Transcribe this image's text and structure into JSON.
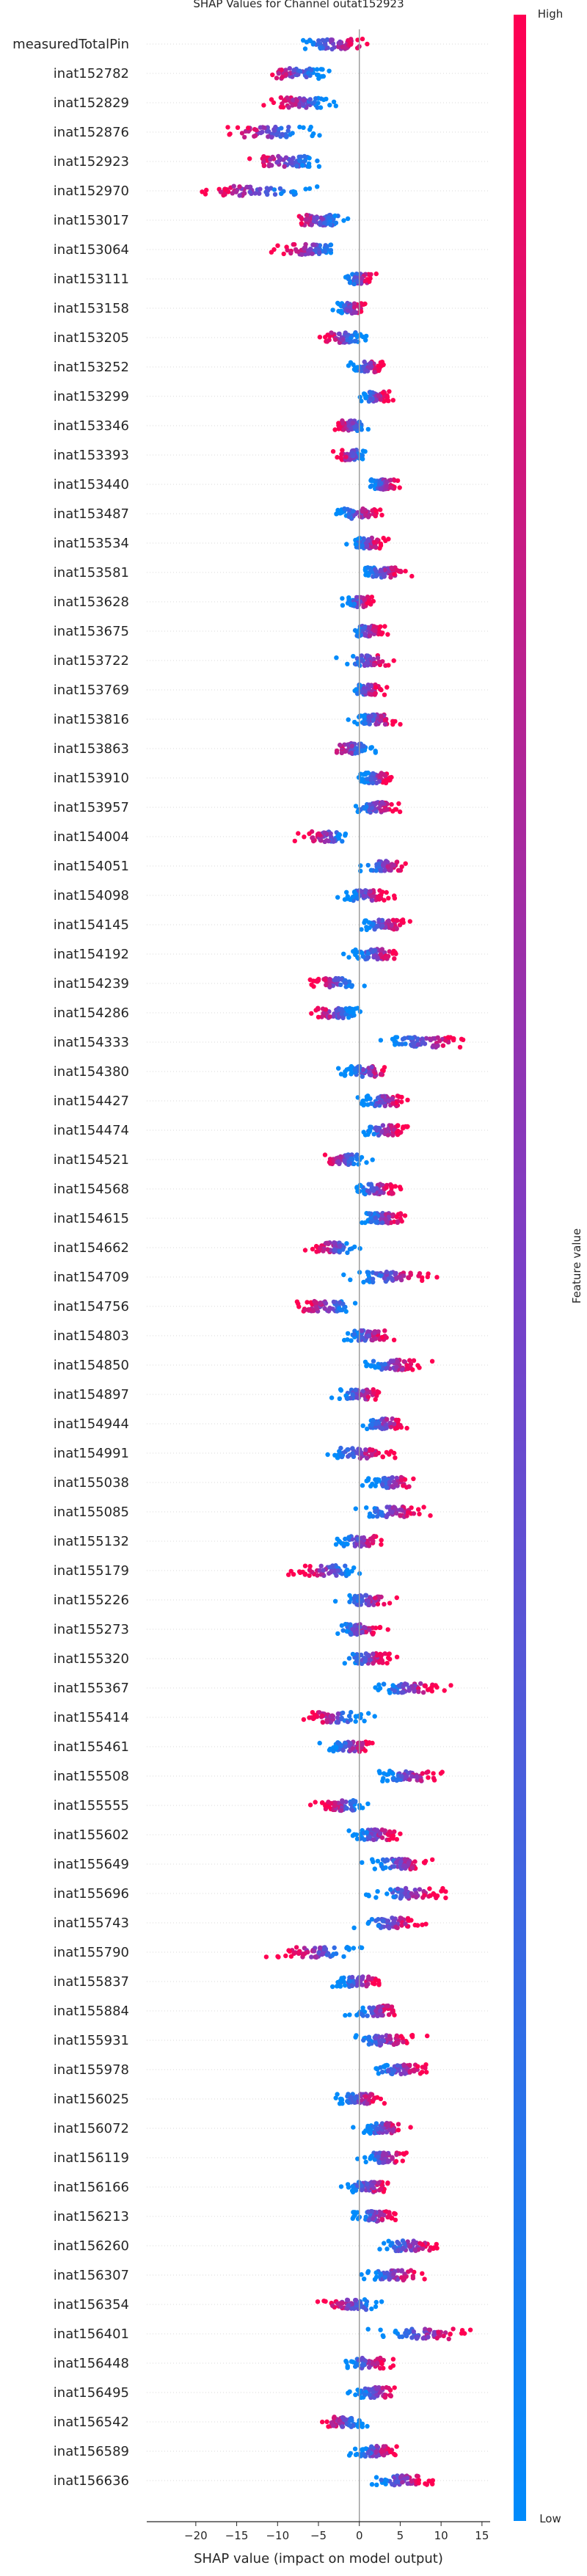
{
  "chart_data": {
    "type": "scatter",
    "subtype": "shap-beeswarm",
    "title": "SHAP Values for Channel outat152923",
    "xlabel": "SHAP value (impact on model output)",
    "xlim": [
      -26,
      16
    ],
    "xticks": [
      -20,
      -15,
      -10,
      -5,
      0,
      5,
      10,
      15
    ],
    "grid": false,
    "colorbar": {
      "label": "Feature value",
      "high": "High",
      "low": "Low",
      "high_color": "#ff0052",
      "low_color": "#008bfb",
      "mid_color": "#7a3ec6"
    },
    "features": [
      {
        "name": "measuredTotalPin",
        "center": -3,
        "spread": 5,
        "dir": 1
      },
      {
        "name": "inat152782",
        "center": -8,
        "spread": 4,
        "dir": -1
      },
      {
        "name": "inat152829",
        "center": -7,
        "spread": 4,
        "dir": -1
      },
      {
        "name": "inat152876",
        "center": -11,
        "spread": 6,
        "dir": -1
      },
      {
        "name": "inat152923",
        "center": -9,
        "spread": 5,
        "dir": -1
      },
      {
        "name": "inat152970",
        "center": -13,
        "spread": 7,
        "dir": -1
      },
      {
        "name": "inat153017",
        "center": -5,
        "spread": 4,
        "dir": -1
      },
      {
        "name": "inat153064",
        "center": -6,
        "spread": 4,
        "dir": -1
      },
      {
        "name": "inat153111",
        "center": 0,
        "spread": 2,
        "dir": 1
      },
      {
        "name": "inat153158",
        "center": -1,
        "spread": 2,
        "dir": 1
      },
      {
        "name": "inat153205",
        "center": -2,
        "spread": 3,
        "dir": -1
      },
      {
        "name": "inat153252",
        "center": 1,
        "spread": 2,
        "dir": 1
      },
      {
        "name": "inat153299",
        "center": 2,
        "spread": 2,
        "dir": 1
      },
      {
        "name": "inat153346",
        "center": -1,
        "spread": 2,
        "dir": -1
      },
      {
        "name": "inat153393",
        "center": -1,
        "spread": 2,
        "dir": -1
      },
      {
        "name": "inat153440",
        "center": 3,
        "spread": 2,
        "dir": 1
      },
      {
        "name": "inat153487",
        "center": 0,
        "spread": 3,
        "dir": 1
      },
      {
        "name": "inat153534",
        "center": 1,
        "spread": 2,
        "dir": 1
      },
      {
        "name": "inat153581",
        "center": 3,
        "spread": 3,
        "dir": 1
      },
      {
        "name": "inat153628",
        "center": 0,
        "spread": 2,
        "dir": 1
      },
      {
        "name": "inat153675",
        "center": 1,
        "spread": 2,
        "dir": 1
      },
      {
        "name": "inat153722",
        "center": 1,
        "spread": 3,
        "dir": 1
      },
      {
        "name": "inat153769",
        "center": 1,
        "spread": 2,
        "dir": 1
      },
      {
        "name": "inat153816",
        "center": 2,
        "spread": 3,
        "dir": 1
      },
      {
        "name": "inat153863",
        "center": -1,
        "spread": 3,
        "dir": -1
      },
      {
        "name": "inat153910",
        "center": 2,
        "spread": 2,
        "dir": 1
      },
      {
        "name": "inat153957",
        "center": 2,
        "spread": 3,
        "dir": 1
      },
      {
        "name": "inat154004",
        "center": -4,
        "spread": 3,
        "dir": -1
      },
      {
        "name": "inat154051",
        "center": 3,
        "spread": 3,
        "dir": 1
      },
      {
        "name": "inat154098",
        "center": 1,
        "spread": 3,
        "dir": 1
      },
      {
        "name": "inat154145",
        "center": 3,
        "spread": 3,
        "dir": 1
      },
      {
        "name": "inat154192",
        "center": 2,
        "spread": 3,
        "dir": 1
      },
      {
        "name": "inat154239",
        "center": -3,
        "spread": 3,
        "dir": -1
      },
      {
        "name": "inat154286",
        "center": -3,
        "spread": 3,
        "dir": -1
      },
      {
        "name": "inat154333",
        "center": 8,
        "spread": 5,
        "dir": 1
      },
      {
        "name": "inat154380",
        "center": 1,
        "spread": 3,
        "dir": 1
      },
      {
        "name": "inat154427",
        "center": 3,
        "spread": 3,
        "dir": 1
      },
      {
        "name": "inat154474",
        "center": 3,
        "spread": 3,
        "dir": 1
      },
      {
        "name": "inat154521",
        "center": -2,
        "spread": 3,
        "dir": -1
      },
      {
        "name": "inat154568",
        "center": 2,
        "spread": 3,
        "dir": 1
      },
      {
        "name": "inat154615",
        "center": 3,
        "spread": 3,
        "dir": 1
      },
      {
        "name": "inat154662",
        "center": -3,
        "spread": 3,
        "dir": -1
      },
      {
        "name": "inat154709",
        "center": 4,
        "spread": 5,
        "dir": 1
      },
      {
        "name": "inat154756",
        "center": -4,
        "spread": 4,
        "dir": -1
      },
      {
        "name": "inat154803",
        "center": 1,
        "spread": 3,
        "dir": 1
      },
      {
        "name": "inat154850",
        "center": 4,
        "spread": 4,
        "dir": 1
      },
      {
        "name": "inat154897",
        "center": 0,
        "spread": 3,
        "dir": 1
      },
      {
        "name": "inat154944",
        "center": 3,
        "spread": 3,
        "dir": 1
      },
      {
        "name": "inat154991",
        "center": 0,
        "spread": 4,
        "dir": 1
      },
      {
        "name": "inat155038",
        "center": 4,
        "spread": 3,
        "dir": 1
      },
      {
        "name": "inat155085",
        "center": 4,
        "spread": 4,
        "dir": 1
      },
      {
        "name": "inat155132",
        "center": 0,
        "spread": 3,
        "dir": 1
      },
      {
        "name": "inat155179",
        "center": -4,
        "spread": 4,
        "dir": -1
      },
      {
        "name": "inat155226",
        "center": 1,
        "spread": 3,
        "dir": 1
      },
      {
        "name": "inat155273",
        "center": 0,
        "spread": 3,
        "dir": 1
      },
      {
        "name": "inat155320",
        "center": 1,
        "spread": 3,
        "dir": 1
      },
      {
        "name": "inat155367",
        "center": 6,
        "spread": 4,
        "dir": 1
      },
      {
        "name": "inat155414",
        "center": -3,
        "spread": 4,
        "dir": -1
      },
      {
        "name": "inat155461",
        "center": -1,
        "spread": 3,
        "dir": 1
      },
      {
        "name": "inat155508",
        "center": 6,
        "spread": 4,
        "dir": 1
      },
      {
        "name": "inat155555",
        "center": -2,
        "spread": 3,
        "dir": -1
      },
      {
        "name": "inat155602",
        "center": 2,
        "spread": 3,
        "dir": 1
      },
      {
        "name": "inat155649",
        "center": 5,
        "spread": 4,
        "dir": 1
      },
      {
        "name": "inat155696",
        "center": 6,
        "spread": 5,
        "dir": 1
      },
      {
        "name": "inat155743",
        "center": 4,
        "spread": 4,
        "dir": 1
      },
      {
        "name": "inat155790",
        "center": -5,
        "spread": 5,
        "dir": -1
      },
      {
        "name": "inat155837",
        "center": 0,
        "spread": 3,
        "dir": 1
      },
      {
        "name": "inat155884",
        "center": 2,
        "spread": 3,
        "dir": 1
      },
      {
        "name": "inat155931",
        "center": 3,
        "spread": 4,
        "dir": 1
      },
      {
        "name": "inat155978",
        "center": 5,
        "spread": 4,
        "dir": 1
      },
      {
        "name": "inat156025",
        "center": 0,
        "spread": 3,
        "dir": 1
      },
      {
        "name": "inat156072",
        "center": 3,
        "spread": 3,
        "dir": 1
      },
      {
        "name": "inat156119",
        "center": 3,
        "spread": 3,
        "dir": 1
      },
      {
        "name": "inat156166",
        "center": 1,
        "spread": 3,
        "dir": 1
      },
      {
        "name": "inat156213",
        "center": 2,
        "spread": 3,
        "dir": 1
      },
      {
        "name": "inat156260",
        "center": 6,
        "spread": 4,
        "dir": 1
      },
      {
        "name": "inat156307",
        "center": 4,
        "spread": 4,
        "dir": 1
      },
      {
        "name": "inat156354",
        "center": -1,
        "spread": 4,
        "dir": -1
      },
      {
        "name": "inat156401",
        "center": 8,
        "spread": 5,
        "dir": 1
      },
      {
        "name": "inat156448",
        "center": 1,
        "spread": 3,
        "dir": 1
      },
      {
        "name": "inat156495",
        "center": 2,
        "spread": 3,
        "dir": 1
      },
      {
        "name": "inat156542",
        "center": -2,
        "spread": 3,
        "dir": -1
      },
      {
        "name": "inat156589",
        "center": 2,
        "spread": 3,
        "dir": 1
      },
      {
        "name": "inat156636",
        "center": 5,
        "spread": 4,
        "dir": 1
      }
    ]
  }
}
